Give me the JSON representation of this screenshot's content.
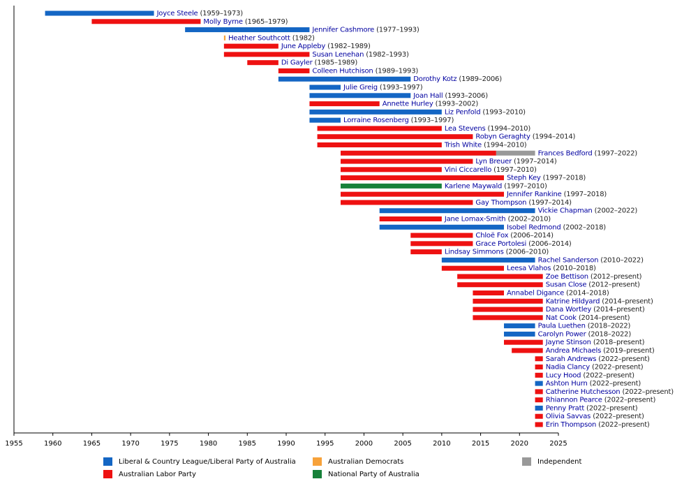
{
  "chart_data": {
    "type": "timeline",
    "xlim": [
      1955,
      2025
    ],
    "xticks": [
      1955,
      1960,
      1965,
      1970,
      1975,
      1980,
      1985,
      1990,
      1995,
      2000,
      2005,
      2010,
      2015,
      2020,
      2025
    ],
    "series": [
      {
        "name": "Liberal & Country League/Liberal Party of Australia",
        "color": "#1466c4"
      },
      {
        "name": "Australian Labor Party",
        "color": "#ee1111"
      },
      {
        "name": "Australian Democrats",
        "color": "#f7a23a"
      },
      {
        "name": "National Party of Australia",
        "color": "#17813a"
      },
      {
        "name": "Independent",
        "color": "#999999"
      }
    ],
    "rows": [
      {
        "name": "Joyce Steele",
        "period": "(1959–1973)",
        "bars": [
          {
            "series": 0,
            "start": 1959,
            "end": 1973
          }
        ]
      },
      {
        "name": "Molly Byrne",
        "period": "(1965–1979)",
        "bars": [
          {
            "series": 1,
            "start": 1965,
            "end": 1979
          }
        ]
      },
      {
        "name": "Jennifer Cashmore",
        "period": "(1977–1993)",
        "bars": [
          {
            "series": 0,
            "start": 1977,
            "end": 1993
          }
        ]
      },
      {
        "name": "Heather Southcott",
        "period": "(1982)",
        "bars": [
          {
            "series": 2,
            "start": 1982,
            "end": 1982.2
          }
        ]
      },
      {
        "name": "June Appleby",
        "period": "(1982–1989)",
        "bars": [
          {
            "series": 1,
            "start": 1982,
            "end": 1989
          }
        ]
      },
      {
        "name": "Susan Lenehan",
        "period": "(1982–1993)",
        "bars": [
          {
            "series": 1,
            "start": 1982,
            "end": 1993
          }
        ]
      },
      {
        "name": "Di Gayler",
        "period": "(1985–1989)",
        "bars": [
          {
            "series": 1,
            "start": 1985,
            "end": 1989
          }
        ]
      },
      {
        "name": "Colleen Hutchison",
        "period": "(1989–1993)",
        "bars": [
          {
            "series": 1,
            "start": 1989,
            "end": 1993
          }
        ]
      },
      {
        "name": "Dorothy Kotz",
        "period": "(1989–2006)",
        "bars": [
          {
            "series": 0,
            "start": 1989,
            "end": 2006
          }
        ]
      },
      {
        "name": "Julie Greig",
        "period": "(1993–1997)",
        "bars": [
          {
            "series": 0,
            "start": 1993,
            "end": 1997
          }
        ]
      },
      {
        "name": "Joan Hall",
        "period": "(1993–2006)",
        "bars": [
          {
            "series": 0,
            "start": 1993,
            "end": 2006
          }
        ]
      },
      {
        "name": "Annette Hurley",
        "period": "(1993–2002)",
        "bars": [
          {
            "series": 1,
            "start": 1993,
            "end": 2002
          }
        ]
      },
      {
        "name": "Liz Penfold",
        "period": "(1993–2010)",
        "bars": [
          {
            "series": 0,
            "start": 1993,
            "end": 2010
          }
        ]
      },
      {
        "name": "Lorraine Rosenberg",
        "period": "(1993–1997)",
        "bars": [
          {
            "series": 0,
            "start": 1993,
            "end": 1997
          }
        ]
      },
      {
        "name": "Lea Stevens",
        "period": "(1994–2010)",
        "bars": [
          {
            "series": 1,
            "start": 1994,
            "end": 2010
          }
        ]
      },
      {
        "name": "Robyn Geraghty",
        "period": "(1994–2014)",
        "bars": [
          {
            "series": 1,
            "start": 1994,
            "end": 2014
          }
        ]
      },
      {
        "name": "Trish White",
        "period": "(1994–2010)",
        "bars": [
          {
            "series": 1,
            "start": 1994,
            "end": 2010
          }
        ]
      },
      {
        "name": "Frances Bedford",
        "period": "(1997–2022)",
        "bars": [
          {
            "series": 1,
            "start": 1997,
            "end": 2017
          },
          {
            "series": 4,
            "start": 2017,
            "end": 2022
          }
        ]
      },
      {
        "name": "Lyn Breuer",
        "period": "(1997–2014)",
        "bars": [
          {
            "series": 1,
            "start": 1997,
            "end": 2014
          }
        ]
      },
      {
        "name": "Vini Ciccarello",
        "period": "(1997–2010)",
        "bars": [
          {
            "series": 1,
            "start": 1997,
            "end": 2010
          }
        ]
      },
      {
        "name": "Steph Key",
        "period": "(1997–2018)",
        "bars": [
          {
            "series": 1,
            "start": 1997,
            "end": 2018
          }
        ]
      },
      {
        "name": "Karlene Maywald",
        "period": "(1997–2010)",
        "bars": [
          {
            "series": 3,
            "start": 1997,
            "end": 2010
          }
        ]
      },
      {
        "name": "Jennifer Rankine",
        "period": "(1997–2018)",
        "bars": [
          {
            "series": 1,
            "start": 1997,
            "end": 2018
          }
        ]
      },
      {
        "name": "Gay Thompson",
        "period": "(1997–2014)",
        "bars": [
          {
            "series": 1,
            "start": 1997,
            "end": 2014
          }
        ]
      },
      {
        "name": "Vickie Chapman",
        "period": "(2002–2022)",
        "bars": [
          {
            "series": 0,
            "start": 2002,
            "end": 2022
          }
        ]
      },
      {
        "name": "Jane Lomax-Smith",
        "period": "(2002–2010)",
        "bars": [
          {
            "series": 1,
            "start": 2002,
            "end": 2010
          }
        ]
      },
      {
        "name": "Isobel Redmond",
        "period": "(2002–2018)",
        "bars": [
          {
            "series": 0,
            "start": 2002,
            "end": 2018
          }
        ]
      },
      {
        "name": "Chloë Fox",
        "period": "(2006–2014)",
        "bars": [
          {
            "series": 1,
            "start": 2006,
            "end": 2014
          }
        ]
      },
      {
        "name": "Grace Portolesi",
        "period": "(2006–2014)",
        "bars": [
          {
            "series": 1,
            "start": 2006,
            "end": 2014
          }
        ]
      },
      {
        "name": "Lindsay Simmons",
        "period": "(2006–2010)",
        "bars": [
          {
            "series": 1,
            "start": 2006,
            "end": 2010
          }
        ]
      },
      {
        "name": "Rachel Sanderson",
        "period": "(2010–2022)",
        "bars": [
          {
            "series": 0,
            "start": 2010,
            "end": 2022
          }
        ]
      },
      {
        "name": "Leesa Vlahos",
        "period": "(2010–2018)",
        "bars": [
          {
            "series": 1,
            "start": 2010,
            "end": 2018
          }
        ]
      },
      {
        "name": "Zoe Bettison",
        "period": "(2012–present)",
        "bars": [
          {
            "series": 1,
            "start": 2012,
            "end": 2023
          }
        ]
      },
      {
        "name": "Susan Close",
        "period": "(2012–present)",
        "bars": [
          {
            "series": 1,
            "start": 2012,
            "end": 2023
          }
        ]
      },
      {
        "name": "Annabel Digance",
        "period": "(2014–2018)",
        "bars": [
          {
            "series": 1,
            "start": 2014,
            "end": 2018
          }
        ]
      },
      {
        "name": "Katrine Hildyard",
        "period": "(2014–present)",
        "bars": [
          {
            "series": 1,
            "start": 2014,
            "end": 2023
          }
        ]
      },
      {
        "name": "Dana Wortley",
        "period": "(2014–present)",
        "bars": [
          {
            "series": 1,
            "start": 2014,
            "end": 2023
          }
        ]
      },
      {
        "name": "Nat Cook",
        "period": "(2014–present)",
        "bars": [
          {
            "series": 1,
            "start": 2014,
            "end": 2023
          }
        ]
      },
      {
        "name": "Paula Luethen",
        "period": "(2018–2022)",
        "bars": [
          {
            "series": 0,
            "start": 2018,
            "end": 2022
          }
        ]
      },
      {
        "name": "Carolyn Power",
        "period": "(2018–2022)",
        "bars": [
          {
            "series": 0,
            "start": 2018,
            "end": 2022
          }
        ]
      },
      {
        "name": "Jayne Stinson",
        "period": "(2018–present)",
        "bars": [
          {
            "series": 1,
            "start": 2018,
            "end": 2023
          }
        ]
      },
      {
        "name": "Andrea Michaels",
        "period": "(2019–present)",
        "bars": [
          {
            "series": 1,
            "start": 2019,
            "end": 2023
          }
        ]
      },
      {
        "name": "Sarah Andrews",
        "period": "(2022–present)",
        "bars": [
          {
            "series": 1,
            "start": 2022,
            "end": 2023
          }
        ]
      },
      {
        "name": "Nadia Clancy",
        "period": "(2022–present)",
        "bars": [
          {
            "series": 1,
            "start": 2022,
            "end": 2023
          }
        ]
      },
      {
        "name": "Lucy Hood",
        "period": "(2022–present)",
        "bars": [
          {
            "series": 1,
            "start": 2022,
            "end": 2023
          }
        ]
      },
      {
        "name": "Ashton Hurn",
        "period": "(2022–present)",
        "bars": [
          {
            "series": 0,
            "start": 2022,
            "end": 2023
          }
        ]
      },
      {
        "name": "Catherine Hutchesson",
        "period": "(2022–present)",
        "bars": [
          {
            "series": 1,
            "start": 2022,
            "end": 2023
          }
        ]
      },
      {
        "name": "Rhiannon Pearce",
        "period": "(2022–present)",
        "bars": [
          {
            "series": 1,
            "start": 2022,
            "end": 2023
          }
        ]
      },
      {
        "name": "Penny Pratt",
        "period": "(2022–present)",
        "bars": [
          {
            "series": 0,
            "start": 2022,
            "end": 2023
          }
        ]
      },
      {
        "name": "Olivia Savvas",
        "period": "(2022–present)",
        "bars": [
          {
            "series": 1,
            "start": 2022,
            "end": 2023
          }
        ]
      },
      {
        "name": "Erin Thompson",
        "period": "(2022–present)",
        "bars": [
          {
            "series": 1,
            "start": 2022,
            "end": 2023
          }
        ]
      }
    ]
  }
}
